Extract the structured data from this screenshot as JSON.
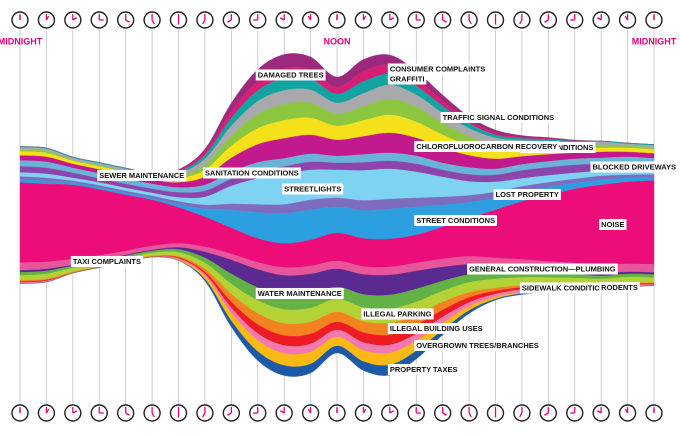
{
  "chart_data": {
    "type": "streamgraph",
    "categories": [
      "MIDNIGHT",
      null,
      null,
      null,
      null,
      null,
      null,
      null,
      null,
      null,
      null,
      null,
      "NOON",
      null,
      null,
      null,
      null,
      null,
      null,
      null,
      null,
      null,
      null,
      null,
      "MIDNIGHT"
    ],
    "series": [
      {
        "name": "DAMAGED TREES",
        "color": "#9b2a7e",
        "values": [
          0,
          0,
          0,
          0,
          0,
          0,
          1,
          3,
          8,
          12,
          14,
          13,
          10,
          12,
          10,
          8,
          6,
          4,
          3,
          2,
          1,
          1,
          0,
          0,
          0
        ]
      },
      {
        "name": "CONSUMER COMPLAINTS",
        "color": "#d61f74",
        "values": [
          0,
          0,
          0,
          0,
          0,
          0,
          1,
          3,
          7,
          9,
          10,
          9,
          7,
          10,
          9,
          7,
          5,
          3,
          2,
          1,
          1,
          0,
          0,
          0,
          0
        ]
      },
      {
        "name": "GRAFFITI",
        "color": "#14a3a3",
        "values": [
          1,
          1,
          1,
          1,
          1,
          1,
          2,
          4,
          8,
          11,
          12,
          11,
          9,
          12,
          11,
          9,
          7,
          5,
          3,
          2,
          2,
          1,
          1,
          1,
          1
        ]
      },
      {
        "name": "TRAFFIC SIGNAL CONDITIONS",
        "color": "#a7a9ac",
        "values": [
          2,
          2,
          2,
          2,
          2,
          2,
          3,
          6,
          10,
          13,
          14,
          13,
          11,
          13,
          14,
          12,
          10,
          8,
          6,
          5,
          4,
          3,
          3,
          2,
          2
        ]
      },
      {
        "name": "DIRTY CONDITIONS",
        "color": "#8dc63f",
        "values": [
          2,
          2,
          1,
          1,
          1,
          1,
          2,
          5,
          10,
          14,
          16,
          15,
          12,
          14,
          16,
          15,
          12,
          9,
          7,
          5,
          4,
          3,
          3,
          2,
          2
        ]
      },
      {
        "name": "SANITATION CONDITIONS",
        "color": "#f5e11a",
        "values": [
          4,
          4,
          3,
          3,
          3,
          3,
          4,
          7,
          12,
          16,
          18,
          17,
          14,
          16,
          18,
          16,
          13,
          10,
          8,
          6,
          5,
          5,
          4,
          4,
          4
        ]
      },
      {
        "name": "CHLOROFLUOROCARBON RECOVERY",
        "color": "#c2198c",
        "values": [
          5,
          5,
          4,
          4,
          4,
          4,
          5,
          8,
          14,
          18,
          20,
          19,
          16,
          18,
          20,
          18,
          15,
          12,
          10,
          8,
          7,
          6,
          6,
          5,
          5
        ]
      },
      {
        "name": "SEWER MAINTENANCE",
        "color": "#6ab2d8",
        "values": [
          6,
          6,
          5,
          5,
          5,
          5,
          5,
          6,
          7,
          8,
          8,
          8,
          7,
          8,
          8,
          8,
          7,
          7,
          6,
          6,
          6,
          6,
          6,
          6,
          6
        ]
      },
      {
        "name": "BLOCKED DRIVEWAYS",
        "color": "#8e44ad",
        "values": [
          6,
          6,
          5,
          4,
          4,
          4,
          5,
          6,
          7,
          8,
          8,
          8,
          7,
          8,
          8,
          8,
          7,
          7,
          7,
          8,
          8,
          8,
          7,
          7,
          6
        ]
      },
      {
        "name": "STREETLIGHTS",
        "color": "#7fd3f2",
        "values": [
          4,
          4,
          3,
          3,
          3,
          3,
          4,
          8,
          18,
          26,
          30,
          30,
          28,
          30,
          30,
          26,
          20,
          14,
          10,
          8,
          7,
          6,
          5,
          5,
          4
        ]
      },
      {
        "name": "LOST PROPERTY",
        "color": "#7e6cbf",
        "values": [
          3,
          3,
          2,
          2,
          2,
          2,
          3,
          4,
          6,
          8,
          9,
          10,
          9,
          10,
          10,
          9,
          8,
          7,
          6,
          5,
          5,
          4,
          4,
          3,
          3
        ]
      },
      {
        "name": "STREET CONDITIONS",
        "color": "#2c9fe0",
        "values": [
          3,
          3,
          2,
          2,
          2,
          2,
          3,
          8,
          18,
          26,
          30,
          30,
          26,
          28,
          30,
          28,
          22,
          16,
          12,
          10,
          8,
          6,
          5,
          4,
          3
        ]
      },
      {
        "name": "NOISE",
        "color": "#ec0d7a",
        "values": [
          80,
          78,
          74,
          66,
          56,
          46,
          36,
          30,
          26,
          24,
          24,
          26,
          28,
          28,
          28,
          28,
          32,
          38,
          48,
          58,
          66,
          74,
          80,
          82,
          84
        ]
      },
      {
        "name": "TAXI COMPLAINTS",
        "color": "#e7569a",
        "values": [
          8,
          7,
          6,
          5,
          4,
          4,
          4,
          5,
          6,
          7,
          8,
          8,
          8,
          8,
          8,
          8,
          8,
          8,
          8,
          8,
          8,
          8,
          8,
          8,
          8
        ]
      },
      {
        "name": "GENERAL CONSTRUCTION—PLUMBING",
        "color": "#5b2a91",
        "values": [
          2,
          2,
          1,
          1,
          1,
          1,
          2,
          6,
          14,
          18,
          20,
          20,
          18,
          20,
          20,
          18,
          14,
          10,
          7,
          5,
          4,
          3,
          3,
          2,
          2
        ]
      },
      {
        "name": "WATER MAINTENANCE",
        "color": "#62b245",
        "values": [
          3,
          3,
          2,
          2,
          2,
          2,
          3,
          5,
          10,
          13,
          14,
          14,
          12,
          13,
          14,
          13,
          10,
          8,
          6,
          5,
          4,
          4,
          3,
          3,
          3
        ]
      },
      {
        "name": "ILLEGAL PARKING",
        "color": "#b3d236",
        "values": [
          5,
          5,
          4,
          3,
          3,
          3,
          4,
          6,
          10,
          13,
          14,
          14,
          13,
          14,
          14,
          13,
          11,
          10,
          9,
          8,
          7,
          7,
          6,
          6,
          5
        ]
      },
      {
        "name": "ILLEGAL BUILDING USES",
        "color": "#f58220",
        "values": [
          1,
          1,
          1,
          1,
          1,
          1,
          1,
          3,
          8,
          11,
          12,
          12,
          10,
          11,
          12,
          10,
          8,
          5,
          3,
          2,
          2,
          1,
          1,
          1,
          1
        ]
      },
      {
        "name": "SIDEWALK CONDITIONS",
        "color": "#ed1c24",
        "values": [
          1,
          1,
          0,
          0,
          0,
          0,
          1,
          2,
          6,
          9,
          10,
          10,
          8,
          10,
          10,
          9,
          7,
          5,
          3,
          2,
          2,
          1,
          1,
          1,
          1
        ]
      },
      {
        "name": "RODENTS",
        "color": "#f27ab0",
        "values": [
          1,
          1,
          0,
          0,
          0,
          0,
          1,
          2,
          5,
          7,
          8,
          8,
          7,
          8,
          8,
          7,
          6,
          4,
          3,
          3,
          3,
          3,
          2,
          2,
          1
        ]
      },
      {
        "name": "OVERGROWN TREES/BRANCHES",
        "color": "#fcb813",
        "values": [
          0,
          0,
          0,
          0,
          0,
          0,
          1,
          3,
          8,
          11,
          12,
          12,
          9,
          11,
          12,
          10,
          7,
          4,
          2,
          1,
          1,
          0,
          0,
          0,
          0
        ]
      },
      {
        "name": "PROPERTY TAXES",
        "color": "#1c5aa8",
        "values": [
          0,
          0,
          0,
          0,
          0,
          0,
          0,
          2,
          6,
          9,
          10,
          9,
          7,
          9,
          10,
          8,
          5,
          3,
          1,
          1,
          0,
          0,
          0,
          0,
          0
        ]
      }
    ]
  }
}
